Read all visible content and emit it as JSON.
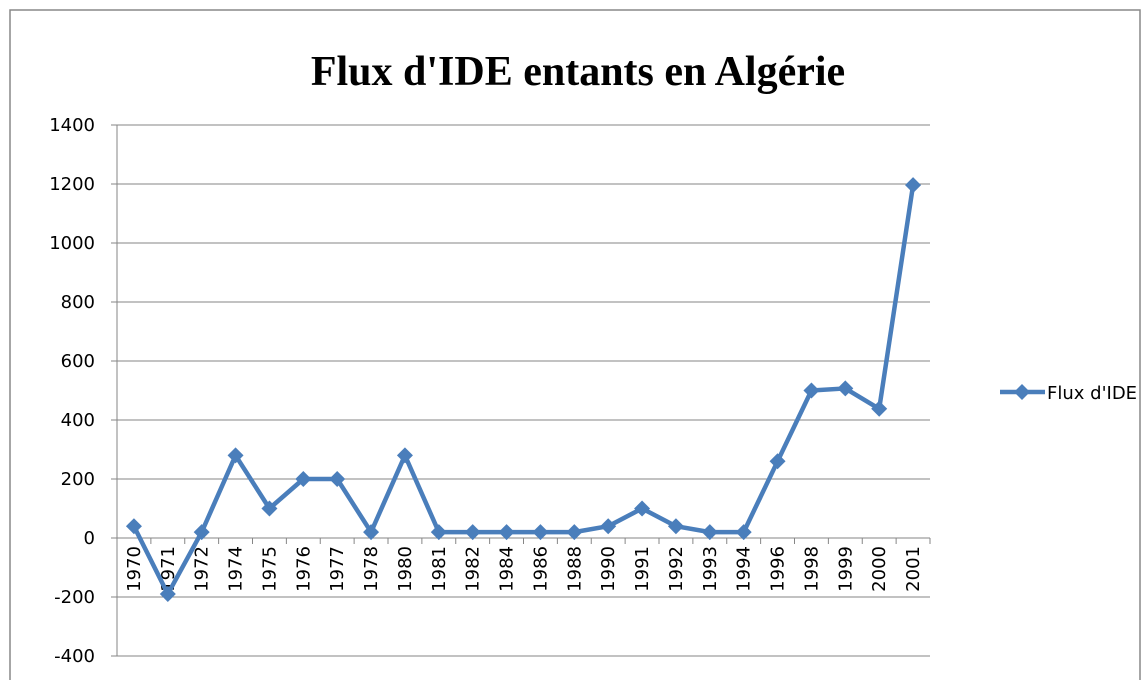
{
  "chart_data": {
    "type": "line",
    "title": "Flux d'IDE entants en Algérie",
    "categories": [
      "1970",
      "1971",
      "1972",
      "1974",
      "1975",
      "1976",
      "1977",
      "1978",
      "1980",
      "1981",
      "1982",
      "1984",
      "1986",
      "1988",
      "1990",
      "1991",
      "1992",
      "1993",
      "1994",
      "1996",
      "1998",
      "1999",
      "2000",
      "2001"
    ],
    "series": [
      {
        "name": "Flux d'IDE",
        "color": "#4a7ebb",
        "values": [
          40,
          -190,
          20,
          280,
          100,
          200,
          200,
          20,
          280,
          20,
          20,
          20,
          20,
          20,
          40,
          100,
          40,
          20,
          20,
          260,
          500,
          507,
          438,
          1196
        ]
      }
    ],
    "ylim": [
      -400,
      1400
    ],
    "yticks": [
      -400,
      -200,
      0,
      200,
      400,
      600,
      800,
      1000,
      1200,
      1400
    ],
    "grid": true,
    "legend": "right"
  }
}
